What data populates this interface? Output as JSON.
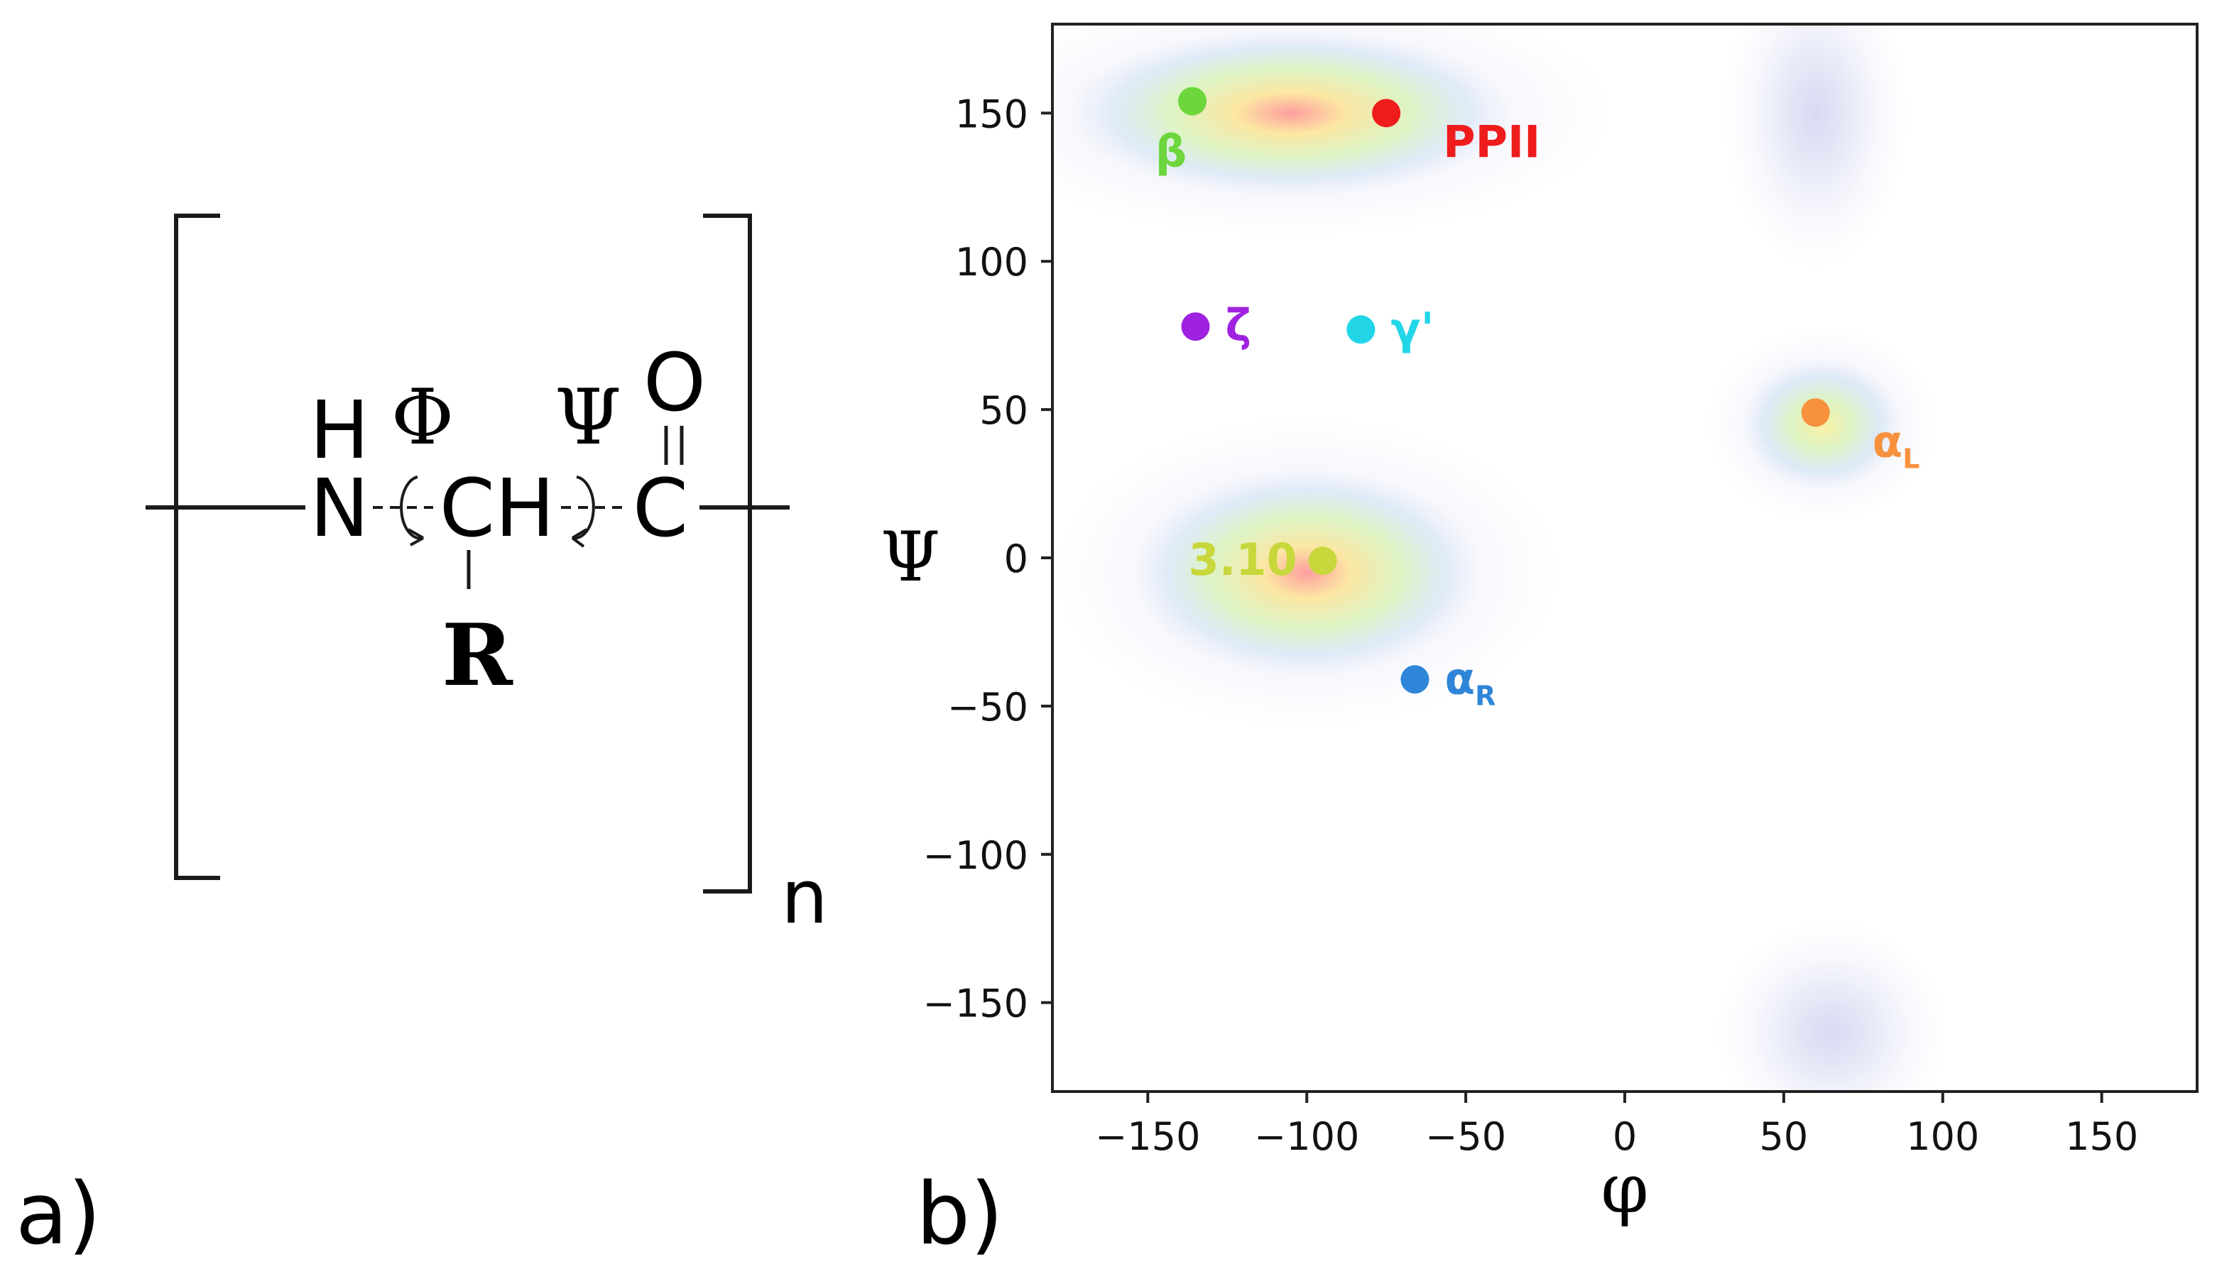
{
  "panel_a": {
    "label": "a)",
    "structure": {
      "h_label": "H",
      "n_label": "N",
      "ch_label": "CH",
      "c_label": "C",
      "o_label": "O",
      "r_label": "R",
      "phi_symbol": "Φ",
      "psi_symbol": "Ψ",
      "repeat_subscript": "n"
    }
  },
  "panel_b": {
    "label": "b)"
  },
  "chart_data": {
    "type": "scatter",
    "background": "Ramachandran density map (heatmap)",
    "xlabel": "φ",
    "ylabel": "Ψ",
    "xlim": [
      -180,
      180
    ],
    "ylim": [
      -180,
      180
    ],
    "xticks": [
      -150,
      -100,
      -50,
      0,
      50,
      100,
      150
    ],
    "yticks": [
      150,
      100,
      50,
      0,
      -50,
      -100,
      -150
    ],
    "xtick_labels": [
      "−150",
      "−100",
      "−50",
      "0",
      "50",
      "100",
      "150"
    ],
    "ytick_labels": [
      "150",
      "100",
      "50",
      "0",
      "−50",
      "−100",
      "−150"
    ],
    "grid": false,
    "points": [
      {
        "name": "β",
        "sub": "",
        "phi": -136,
        "psi": 154,
        "color": "#6cd63c",
        "label_pos": "below-left"
      },
      {
        "name": "PPII",
        "sub": "",
        "phi": -75,
        "psi": 150,
        "color": "#ee1c1c",
        "label_pos": "below-right"
      },
      {
        "name": "ζ",
        "sub": "",
        "phi": -135,
        "psi": 78,
        "color": "#9e22e0",
        "label_pos": "right"
      },
      {
        "name": "γ'",
        "sub": "",
        "phi": -83,
        "psi": 77,
        "color": "#22d6e8",
        "label_pos": "right"
      },
      {
        "name": "α",
        "sub": "L",
        "phi": 60,
        "psi": 49,
        "color": "#f7913e",
        "label_pos": "below-right"
      },
      {
        "name": "3.10",
        "sub": "",
        "phi": -95,
        "psi": -1,
        "color": "#c8d83c",
        "label_pos": "left"
      },
      {
        "name": "α",
        "sub": "R",
        "phi": -66,
        "psi": -41,
        "color": "#2f86d8",
        "label_pos": "right"
      }
    ],
    "density_regions": [
      {
        "phi": -105,
        "psi": 150,
        "phi_spread": 70,
        "psi_spread": 28,
        "level": "high"
      },
      {
        "phi": -100,
        "psi": -5,
        "phi_spread": 55,
        "psi_spread": 35,
        "level": "high"
      },
      {
        "phi": 62,
        "psi": 45,
        "phi_spread": 25,
        "psi_spread": 22,
        "level": "medium"
      },
      {
        "phi": 65,
        "psi": -160,
        "phi_spread": 25,
        "psi_spread": 25,
        "level": "low"
      },
      {
        "phi": 60,
        "psi": 150,
        "phi_spread": 20,
        "psi_spread": 35,
        "level": "low"
      }
    ]
  }
}
